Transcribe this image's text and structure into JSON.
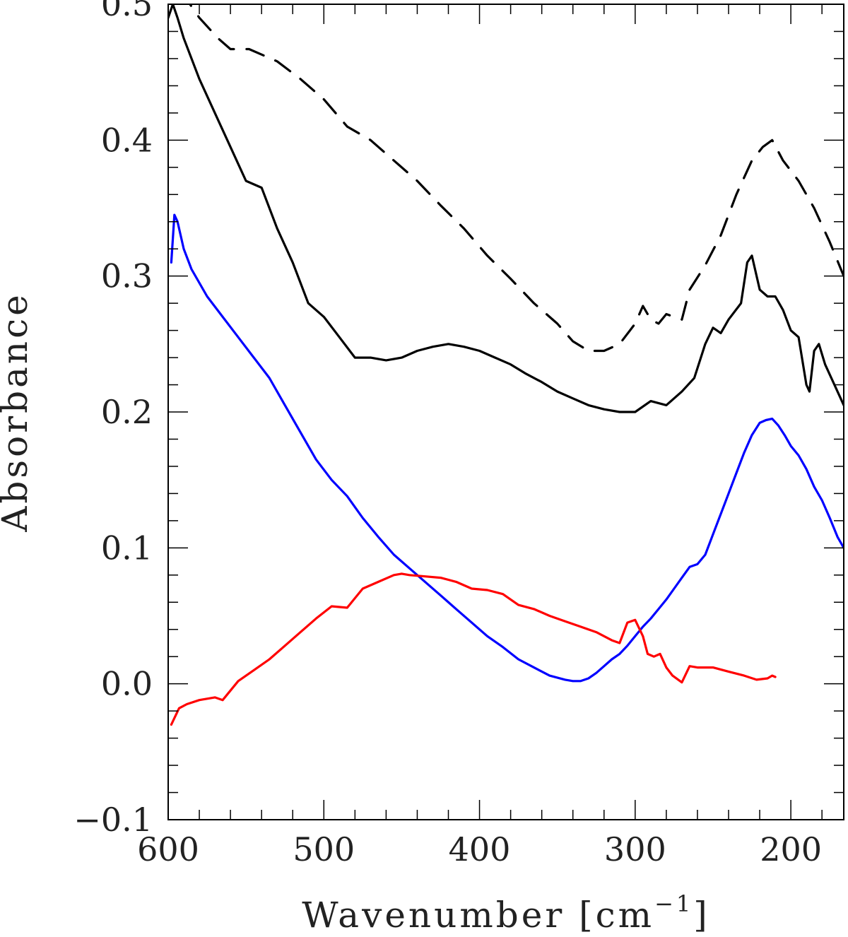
{
  "chart_data": {
    "type": "line",
    "xlabel": "Wavenumber [cm",
    "xlabel_superscript": "−1",
    "xlabel_suffix": "]",
    "ylabel": "Absorbance",
    "xlim": [
      600,
      166
    ],
    "ylim": [
      -0.1,
      0.5
    ],
    "x_ticks": [
      600,
      500,
      400,
      300,
      200
    ],
    "x_tick_labels": [
      "600",
      "500",
      "400",
      "300",
      "200"
    ],
    "y_ticks": [
      -0.1,
      0.0,
      0.1,
      0.2,
      0.3,
      0.4,
      0.5
    ],
    "y_tick_labels": [
      "−0.1",
      "0.0",
      "0.1",
      "0.2",
      "0.3",
      "0.4",
      "0.5"
    ],
    "grid": false,
    "legend": "none",
    "series": [
      {
        "color": "#000000",
        "dash": "dashed",
        "x": [
          592,
          580,
          568,
          560,
          548,
          530,
          515,
          500,
          485,
          470,
          455,
          440,
          425,
          410,
          395,
          380,
          365,
          350,
          340,
          330,
          320,
          310,
          300,
          295,
          290,
          285,
          280,
          275,
          270,
          265,
          255,
          245,
          235,
          225,
          218,
          212,
          205,
          195,
          185,
          175,
          166
        ],
        "y": [
          0.51,
          0.49,
          0.475,
          0.467,
          0.467,
          0.458,
          0.445,
          0.43,
          0.41,
          0.4,
          0.385,
          0.37,
          0.352,
          0.335,
          0.315,
          0.298,
          0.28,
          0.265,
          0.252,
          0.245,
          0.245,
          0.25,
          0.265,
          0.278,
          0.268,
          0.265,
          0.272,
          0.27,
          0.268,
          0.29,
          0.308,
          0.33,
          0.36,
          0.385,
          0.395,
          0.4,
          0.385,
          0.37,
          0.35,
          0.325,
          0.3
        ]
      },
      {
        "color": "#000000",
        "dash": "solid",
        "x": [
          600,
          597,
          594,
          590,
          580,
          570,
          560,
          550,
          540,
          530,
          520,
          510,
          500,
          490,
          480,
          470,
          460,
          450,
          440,
          430,
          420,
          410,
          400,
          390,
          380,
          370,
          360,
          350,
          340,
          330,
          320,
          310,
          300,
          290,
          280,
          270,
          262,
          255,
          250,
          245,
          240,
          232,
          228,
          225,
          220,
          215,
          210,
          205,
          200,
          195,
          190,
          188,
          185,
          182,
          178,
          172,
          166
        ],
        "y": [
          0.49,
          0.5,
          0.49,
          0.475,
          0.445,
          0.42,
          0.395,
          0.37,
          0.365,
          0.335,
          0.31,
          0.28,
          0.27,
          0.255,
          0.24,
          0.24,
          0.238,
          0.24,
          0.245,
          0.248,
          0.25,
          0.248,
          0.245,
          0.24,
          0.235,
          0.228,
          0.222,
          0.215,
          0.21,
          0.205,
          0.202,
          0.2,
          0.2,
          0.208,
          0.205,
          0.215,
          0.225,
          0.25,
          0.262,
          0.258,
          0.268,
          0.28,
          0.31,
          0.315,
          0.29,
          0.285,
          0.285,
          0.275,
          0.26,
          0.255,
          0.22,
          0.215,
          0.245,
          0.25,
          0.235,
          0.22,
          0.205
        ]
      },
      {
        "color": "#0000ff",
        "dash": "solid",
        "x": [
          598,
          596,
          594,
          590,
          585,
          575,
          565,
          555,
          545,
          535,
          525,
          515,
          505,
          495,
          485,
          475,
          465,
          455,
          445,
          435,
          425,
          415,
          405,
          395,
          385,
          375,
          365,
          355,
          345,
          340,
          335,
          330,
          325,
          320,
          315,
          310,
          305,
          300,
          295,
          290,
          285,
          280,
          275,
          270,
          265,
          260,
          255,
          250,
          245,
          240,
          235,
          230,
          225,
          220,
          216,
          212,
          208,
          204,
          200,
          195,
          190,
          185,
          180,
          175,
          170,
          166
        ],
        "y": [
          0.31,
          0.345,
          0.34,
          0.32,
          0.305,
          0.285,
          0.27,
          0.255,
          0.24,
          0.225,
          0.205,
          0.185,
          0.165,
          0.15,
          0.138,
          0.122,
          0.108,
          0.095,
          0.085,
          0.075,
          0.065,
          0.055,
          0.045,
          0.035,
          0.027,
          0.018,
          0.012,
          0.006,
          0.003,
          0.002,
          0.002,
          0.004,
          0.008,
          0.013,
          0.018,
          0.022,
          0.028,
          0.035,
          0.042,
          0.048,
          0.055,
          0.062,
          0.07,
          0.078,
          0.086,
          0.088,
          0.095,
          0.11,
          0.125,
          0.14,
          0.155,
          0.17,
          0.183,
          0.192,
          0.194,
          0.195,
          0.19,
          0.183,
          0.175,
          0.168,
          0.158,
          0.145,
          0.135,
          0.122,
          0.108,
          0.1
        ]
      },
      {
        "color": "#ff0000",
        "dash": "solid",
        "x": [
          598,
          593,
          588,
          580,
          570,
          565,
          555,
          545,
          535,
          525,
          515,
          505,
          495,
          485,
          475,
          465,
          455,
          450,
          445,
          435,
          425,
          415,
          405,
          395,
          385,
          375,
          365,
          355,
          345,
          335,
          325,
          315,
          310,
          305,
          300,
          295,
          292,
          288,
          284,
          280,
          276,
          270,
          265,
          260,
          250,
          240,
          230,
          222,
          215,
          212,
          210
        ],
        "y": [
          -0.03,
          -0.018,
          -0.015,
          -0.012,
          -0.01,
          -0.012,
          0.002,
          0.01,
          0.018,
          0.028,
          0.038,
          0.048,
          0.057,
          0.056,
          0.07,
          0.075,
          0.08,
          0.081,
          0.08,
          0.079,
          0.078,
          0.075,
          0.07,
          0.069,
          0.066,
          0.058,
          0.055,
          0.05,
          0.046,
          0.042,
          0.038,
          0.032,
          0.03,
          0.045,
          0.047,
          0.035,
          0.022,
          0.02,
          0.022,
          0.012,
          0.006,
          0.001,
          0.013,
          0.012,
          0.012,
          0.009,
          0.006,
          0.003,
          0.004,
          0.006,
          0.005
        ]
      }
    ]
  }
}
